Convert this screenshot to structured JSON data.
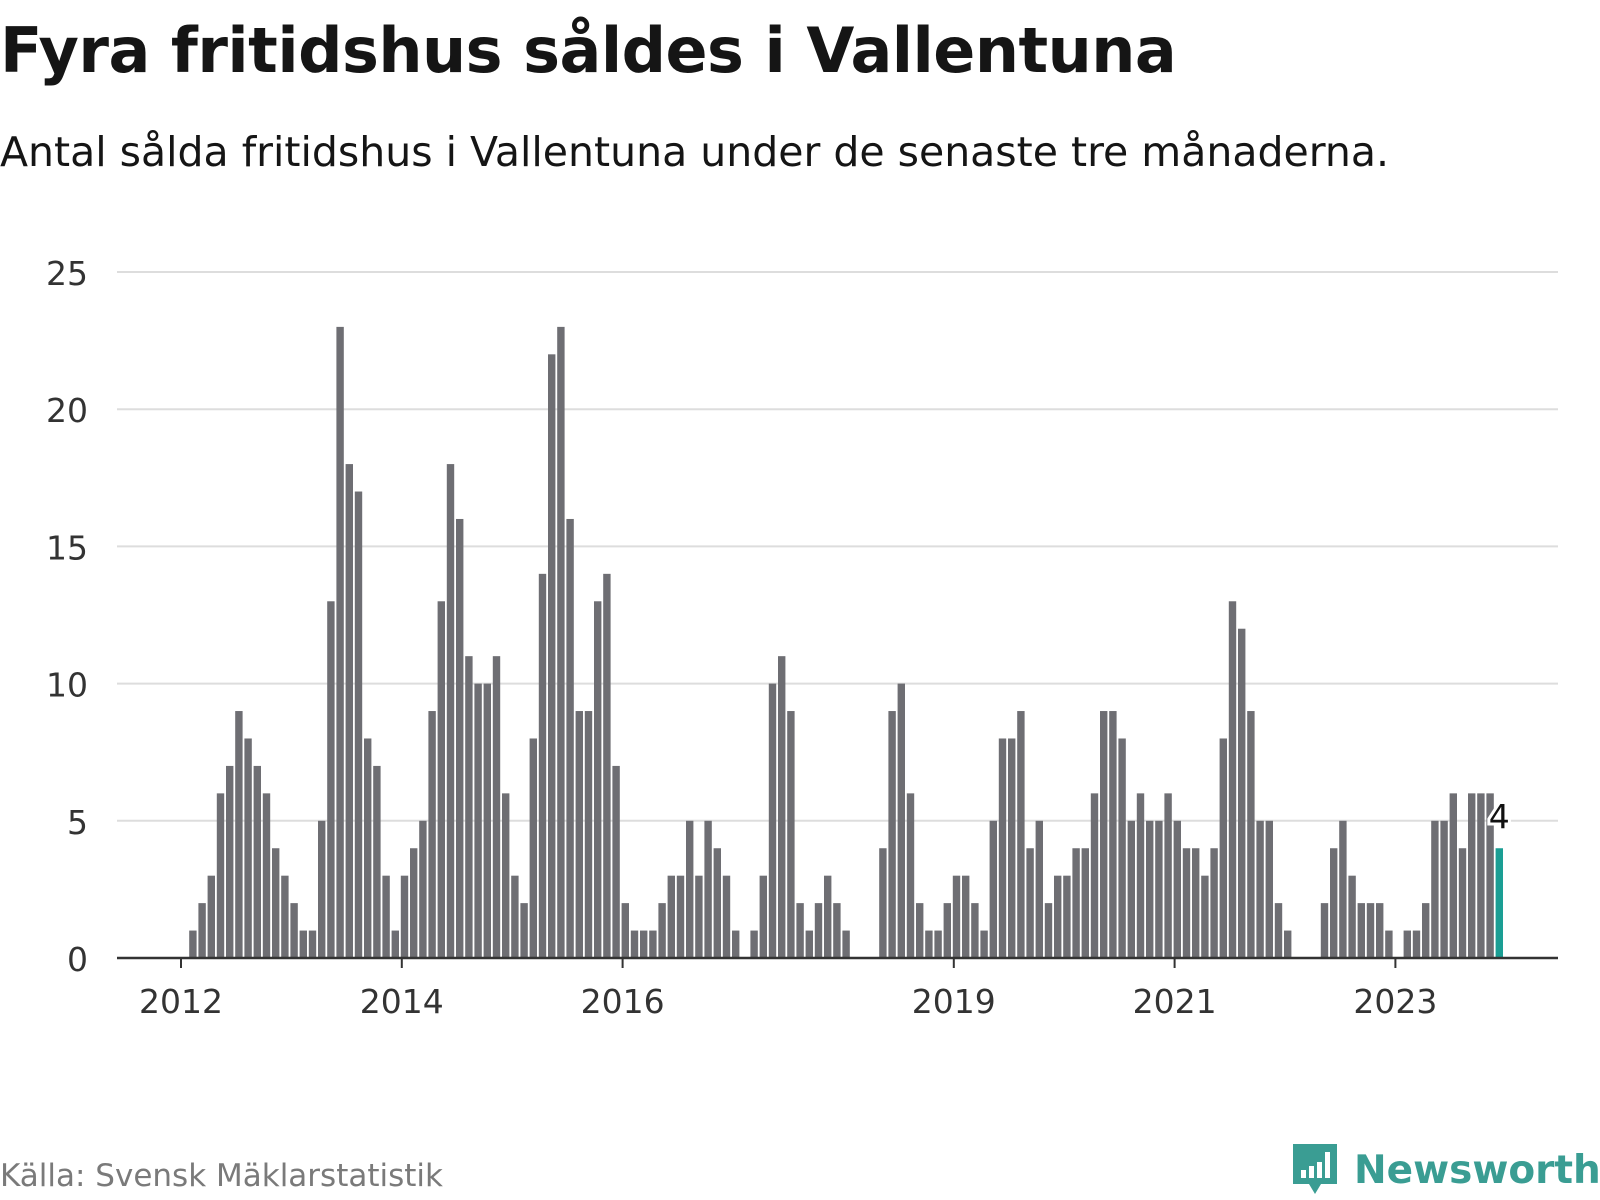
{
  "header": {
    "title": "Fyra fritidshus såldes i Vallentuna",
    "subtitle": "Antal sålda fritidshus i Vallentuna under de senaste tre månaderna."
  },
  "footer": {
    "source": "Källa: Svensk Mäklarstatistik",
    "brand": "Newsworthy"
  },
  "colors": {
    "bar": "#6e6e73",
    "highlight": "#1a9e94",
    "grid": "#dddddd",
    "axis": "#333333",
    "text": "#333333",
    "brand": "#3a9d93"
  },
  "chart_data": {
    "type": "bar",
    "title": "Fyra fritidshus såldes i Vallentuna",
    "xlabel": "",
    "ylabel": "",
    "ylim": [
      0,
      25
    ],
    "yticks": [
      0,
      5,
      10,
      15,
      20,
      25
    ],
    "grid": true,
    "x_start": "2012-01",
    "x_ticks": [
      {
        "label": "2012",
        "index": 0
      },
      {
        "label": "2014",
        "index": 24
      },
      {
        "label": "2016",
        "index": 48
      },
      {
        "label": "2019",
        "index": 84
      },
      {
        "label": "2021",
        "index": 108
      },
      {
        "label": "2023",
        "index": 132
      }
    ],
    "values": [
      0,
      1,
      2,
      3,
      6,
      7,
      9,
      8,
      7,
      6,
      4,
      3,
      2,
      1,
      1,
      5,
      13,
      23,
      18,
      17,
      8,
      7,
      3,
      1,
      3,
      4,
      5,
      9,
      13,
      18,
      16,
      11,
      10,
      10,
      11,
      6,
      3,
      2,
      8,
      14,
      22,
      23,
      16,
      9,
      9,
      13,
      14,
      7,
      2,
      1,
      1,
      1,
      2,
      3,
      3,
      5,
      3,
      5,
      4,
      3,
      1,
      0,
      1,
      3,
      10,
      11,
      9,
      2,
      1,
      2,
      3,
      2,
      1,
      0,
      0,
      0,
      4,
      9,
      10,
      6,
      2,
      1,
      1,
      2,
      3,
      3,
      2,
      1,
      5,
      8,
      8,
      9,
      4,
      5,
      2,
      3,
      3,
      4,
      4,
      6,
      9,
      9,
      8,
      5,
      6,
      5,
      5,
      6,
      5,
      4,
      4,
      3,
      4,
      8,
      13,
      12,
      9,
      5,
      5,
      2,
      1,
      0,
      0,
      0,
      2,
      4,
      5,
      3,
      2,
      2,
      2,
      1,
      0,
      1,
      1,
      2,
      5,
      5,
      6,
      4,
      6,
      6,
      6,
      4
    ],
    "highlight_index": 143,
    "highlight_label": "4"
  }
}
